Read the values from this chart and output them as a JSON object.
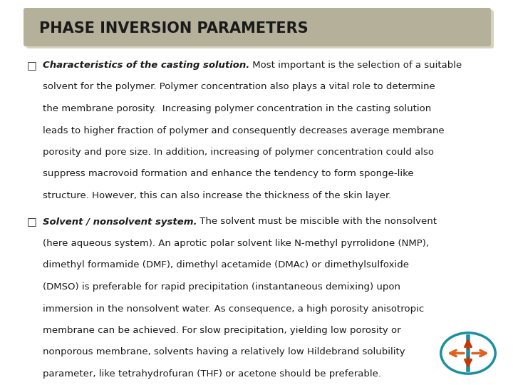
{
  "title": "PHASE INVERSION PARAMETERS",
  "title_bg_color": "#b5b099",
  "title_shadow_color": "#d6d2c0",
  "bg_color": "#ffffff",
  "text_color": "#1a1a1a",
  "font_size": 9.5,
  "title_font_size": 15,
  "p1_lines": [
    [
      "Characteristics of the casting solution.",
      " Most important is the selection of a suitable"
    ],
    [
      "",
      "solvent for the polymer. Polymer concentration also plays a vital role to determine"
    ],
    [
      "",
      "the membrane porosity.  Increasing polymer concentration in the casting solution"
    ],
    [
      "",
      "leads to higher fraction of polymer and consequently decreases average membrane"
    ],
    [
      "",
      "porosity and pore size. In addition, increasing of polymer concentration could also"
    ],
    [
      "",
      "suppress macrovoid formation and enhance the tendency to form sponge-like"
    ],
    [
      "",
      "structure. However, this can also increase the thickness of the skin layer."
    ]
  ],
  "p2_lines": [
    [
      "Solvent / nonsolvent system.",
      " The solvent must be miscible with the nonsolvent"
    ],
    [
      "",
      "(here aqueous system). An aprotic polar solvent like N-methyl pyrrolidone (NMP),"
    ],
    [
      "",
      "dimethyl formamide (DMF), dimethyl acetamide (DMAc) or dimethylsulfoxide"
    ],
    [
      "",
      "(DMSO) is preferable for rapid precipitation (instantaneous demixing) upon"
    ],
    [
      "",
      "immersion in the nonsolvent water. As consequence, a high porosity anisotropic"
    ],
    [
      "",
      "membrane can be achieved. For slow precipitation, yielding low porosity or"
    ],
    [
      "",
      "nonporous membrane, solvents having a relatively low Hildebrand solubility"
    ],
    [
      "",
      "parameter, like tetrahydrofuran (THF) or acetone should be preferable."
    ]
  ],
  "logo_ellipse_color": "#1a8fa0",
  "logo_arrow_up_color": "#cc3300",
  "logo_arrow_side_color": "#e06020"
}
